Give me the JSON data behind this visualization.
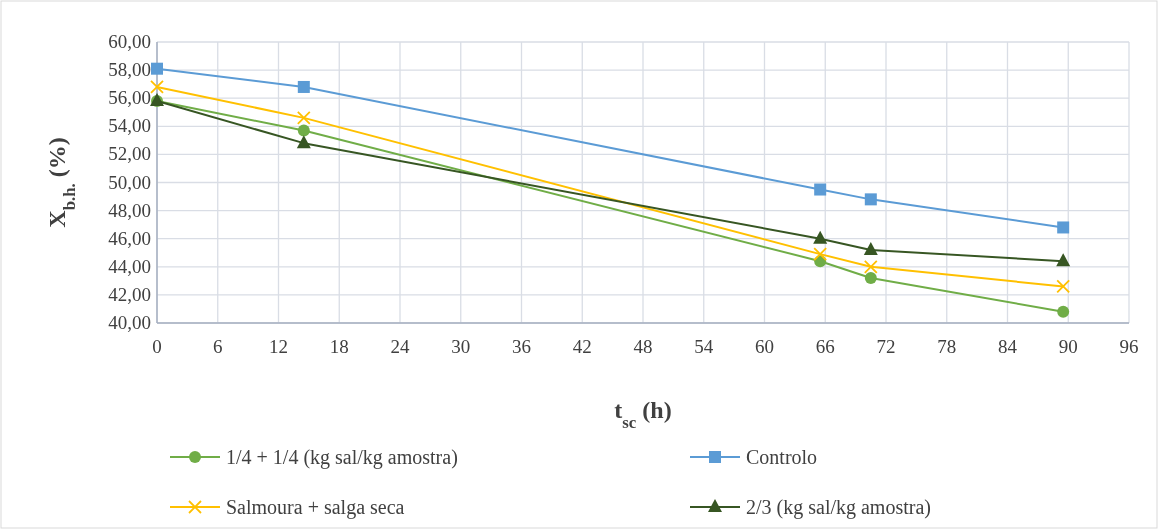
{
  "chart_data": {
    "type": "line",
    "xlabel": "t$_{sc}$ (h)",
    "ylabel": "X$_{b.h.}$ (%)",
    "x": [
      0,
      14.5,
      65.5,
      70.5,
      89.5
    ],
    "series": [
      {
        "name": "1/4 + 1/4 (kg sal/kg amostra)",
        "color": "#70ad47",
        "marker": "circle",
        "values": [
          55.8,
          53.7,
          44.4,
          43.2,
          40.8
        ]
      },
      {
        "name": "Controlo",
        "color": "#5b9bd5",
        "marker": "square",
        "values": [
          58.1,
          56.8,
          49.5,
          48.8,
          46.8
        ]
      },
      {
        "name": "Salmoura + salga seca",
        "color": "#ffc000",
        "marker": "cross",
        "values": [
          56.8,
          54.6,
          44.9,
          44.0,
          42.6
        ]
      },
      {
        "name": "2/3 (kg sal/kg amostra)",
        "color": "#375623",
        "marker": "triangle",
        "values": [
          55.8,
          52.8,
          46.0,
          45.2,
          44.4
        ]
      }
    ],
    "xlim": [
      0,
      96
    ],
    "xticks": [
      0,
      6,
      12,
      18,
      24,
      30,
      36,
      42,
      48,
      54,
      60,
      66,
      72,
      78,
      84,
      90,
      96
    ],
    "ylim": [
      40,
      60
    ],
    "yticks": [
      {
        "value": 40,
        "label": "40,00"
      },
      {
        "value": 42,
        "label": "42,00"
      },
      {
        "value": 44,
        "label": "44,00"
      },
      {
        "value": 46,
        "label": "46,00"
      },
      {
        "value": 48,
        "label": "48,00"
      },
      {
        "value": 50,
        "label": "50,00"
      },
      {
        "value": 52,
        "label": "52,00"
      },
      {
        "value": 54,
        "label": "54,00"
      },
      {
        "value": 56,
        "label": "56,00"
      },
      {
        "value": 58,
        "label": "58,00"
      },
      {
        "value": 60,
        "label": "60,00"
      }
    ],
    "grid": true,
    "legend": "bottom"
  }
}
